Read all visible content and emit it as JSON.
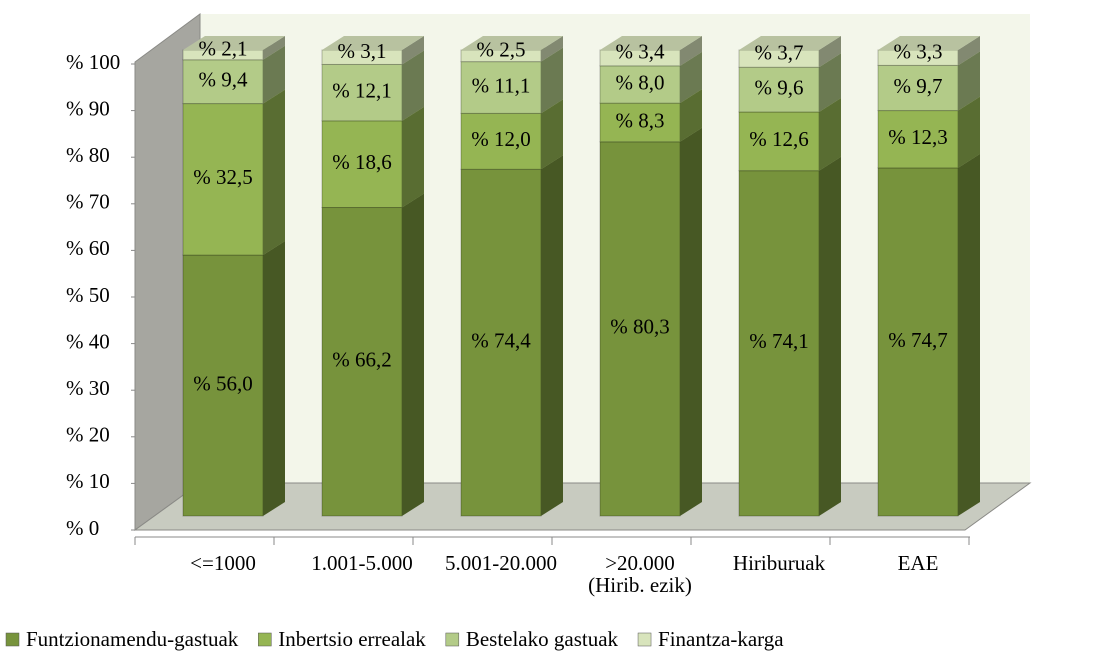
{
  "chart_data": {
    "type": "bar3d_stacked",
    "categories": [
      "<=1000",
      "1.001-5.000",
      "5.001-20.000",
      ">20.000\n(Hirib. ezik)",
      "Hiriburuak",
      "EAE"
    ],
    "series": [
      {
        "name": "Funtzionamendu-gastuak",
        "color": "#77933c",
        "values": [
          56.0,
          66.2,
          74.4,
          80.3,
          74.1,
          74.7
        ],
        "value_labels": [
          "% 56,0",
          "% 66,2",
          "% 74,4",
          "% 80,3",
          "% 74,1",
          "% 74,7"
        ]
      },
      {
        "name": "Inbertsio errealak",
        "color": "#95b553",
        "values": [
          32.5,
          18.6,
          12.0,
          8.3,
          12.6,
          12.3
        ],
        "value_labels": [
          "% 32,5",
          "% 18,6",
          "% 12,0",
          "% 8,3",
          "% 12,6",
          "% 12,3"
        ]
      },
      {
        "name": "Bestelako gastuak",
        "color": "#b3cb88",
        "values": [
          9.4,
          12.1,
          11.1,
          8.0,
          9.6,
          9.7
        ],
        "value_labels": [
          "% 9,4",
          "% 12,1",
          "% 11,1",
          "% 8,0",
          "% 9,6",
          "% 9,7"
        ]
      },
      {
        "name": "Finantza-karga",
        "color": "#d8e4bc",
        "values": [
          2.1,
          3.1,
          2.5,
          3.4,
          3.7,
          3.3
        ],
        "value_labels": [
          "% 2,1",
          "% 3,1",
          "% 2,5",
          "% 3,4",
          "% 3,7",
          "% 3,3"
        ]
      }
    ],
    "ylim": [
      0,
      100
    ],
    "yticks": [
      {
        "value": 0,
        "label": "% 0"
      },
      {
        "value": 10,
        "label": "% 10"
      },
      {
        "value": 20,
        "label": "% 20"
      },
      {
        "value": 30,
        "label": "% 30"
      },
      {
        "value": 40,
        "label": "% 40"
      },
      {
        "value": 50,
        "label": "% 50"
      },
      {
        "value": 60,
        "label": "% 60"
      },
      {
        "value": 70,
        "label": "% 70"
      },
      {
        "value": 80,
        "label": "% 80"
      },
      {
        "value": 90,
        "label": "% 90"
      },
      {
        "value": 100,
        "label": "% 100"
      }
    ],
    "legend": "bottom"
  }
}
